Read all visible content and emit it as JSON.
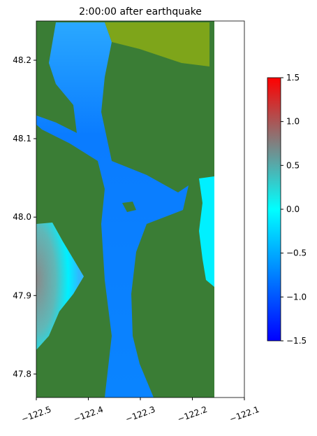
{
  "chart_data": {
    "type": "map",
    "title": "2:00:00 after earthquake",
    "xlim": [
      -122.5,
      -122.1
    ],
    "xticks": [
      {
        "value": -122.5,
        "label": "−122.5"
      },
      {
        "value": -122.4,
        "label": "−122.4"
      },
      {
        "value": -122.3,
        "label": "−122.3"
      },
      {
        "value": -122.2,
        "label": "−122.2"
      },
      {
        "value": -122.1,
        "label": "−122.1"
      }
    ],
    "ylim": [
      47.77,
      48.25
    ],
    "yticks": [
      47.8,
      47.9,
      {
        "value": 48.0,
        "label": "48.0"
      },
      48.1,
      48.2
    ],
    "colorbar": {
      "lim": [
        -1.5,
        1.5
      ],
      "ticks": [
        {
          "value": -1.5,
          "label": "−1.5"
        },
        {
          "value": -1.0,
          "label": "−1.0"
        },
        {
          "value": -0.5,
          "label": "−0.5"
        },
        {
          "value": 0.0,
          "label": "0.0"
        },
        0.5,
        {
          "value": 1.0,
          "label": "1.0"
        },
        1.5
      ],
      "colormap": [
        "#0000ff",
        "#0080ff",
        "#00ffff",
        "#808080",
        "#ff0000"
      ]
    }
  }
}
